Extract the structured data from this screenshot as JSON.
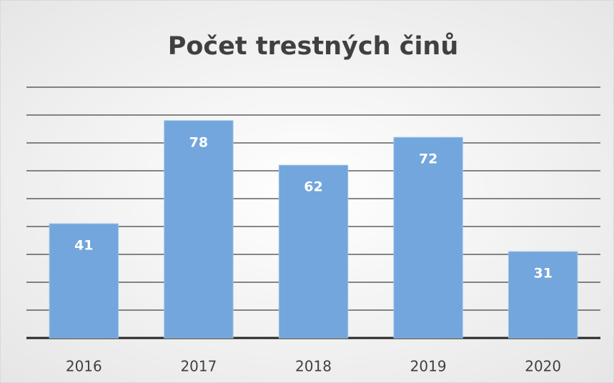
{
  "chart_data": {
    "type": "bar",
    "title": "Počet trestných činů",
    "categories": [
      "2016",
      "2017",
      "2018",
      "2019",
      "2020"
    ],
    "values": [
      41,
      78,
      62,
      72,
      31
    ],
    "color": "#72a6dc",
    "ylim": [
      0,
      90
    ],
    "yticks": [
      0,
      10,
      20,
      30,
      40,
      50,
      60,
      70,
      80,
      90
    ],
    "grid": true
  }
}
